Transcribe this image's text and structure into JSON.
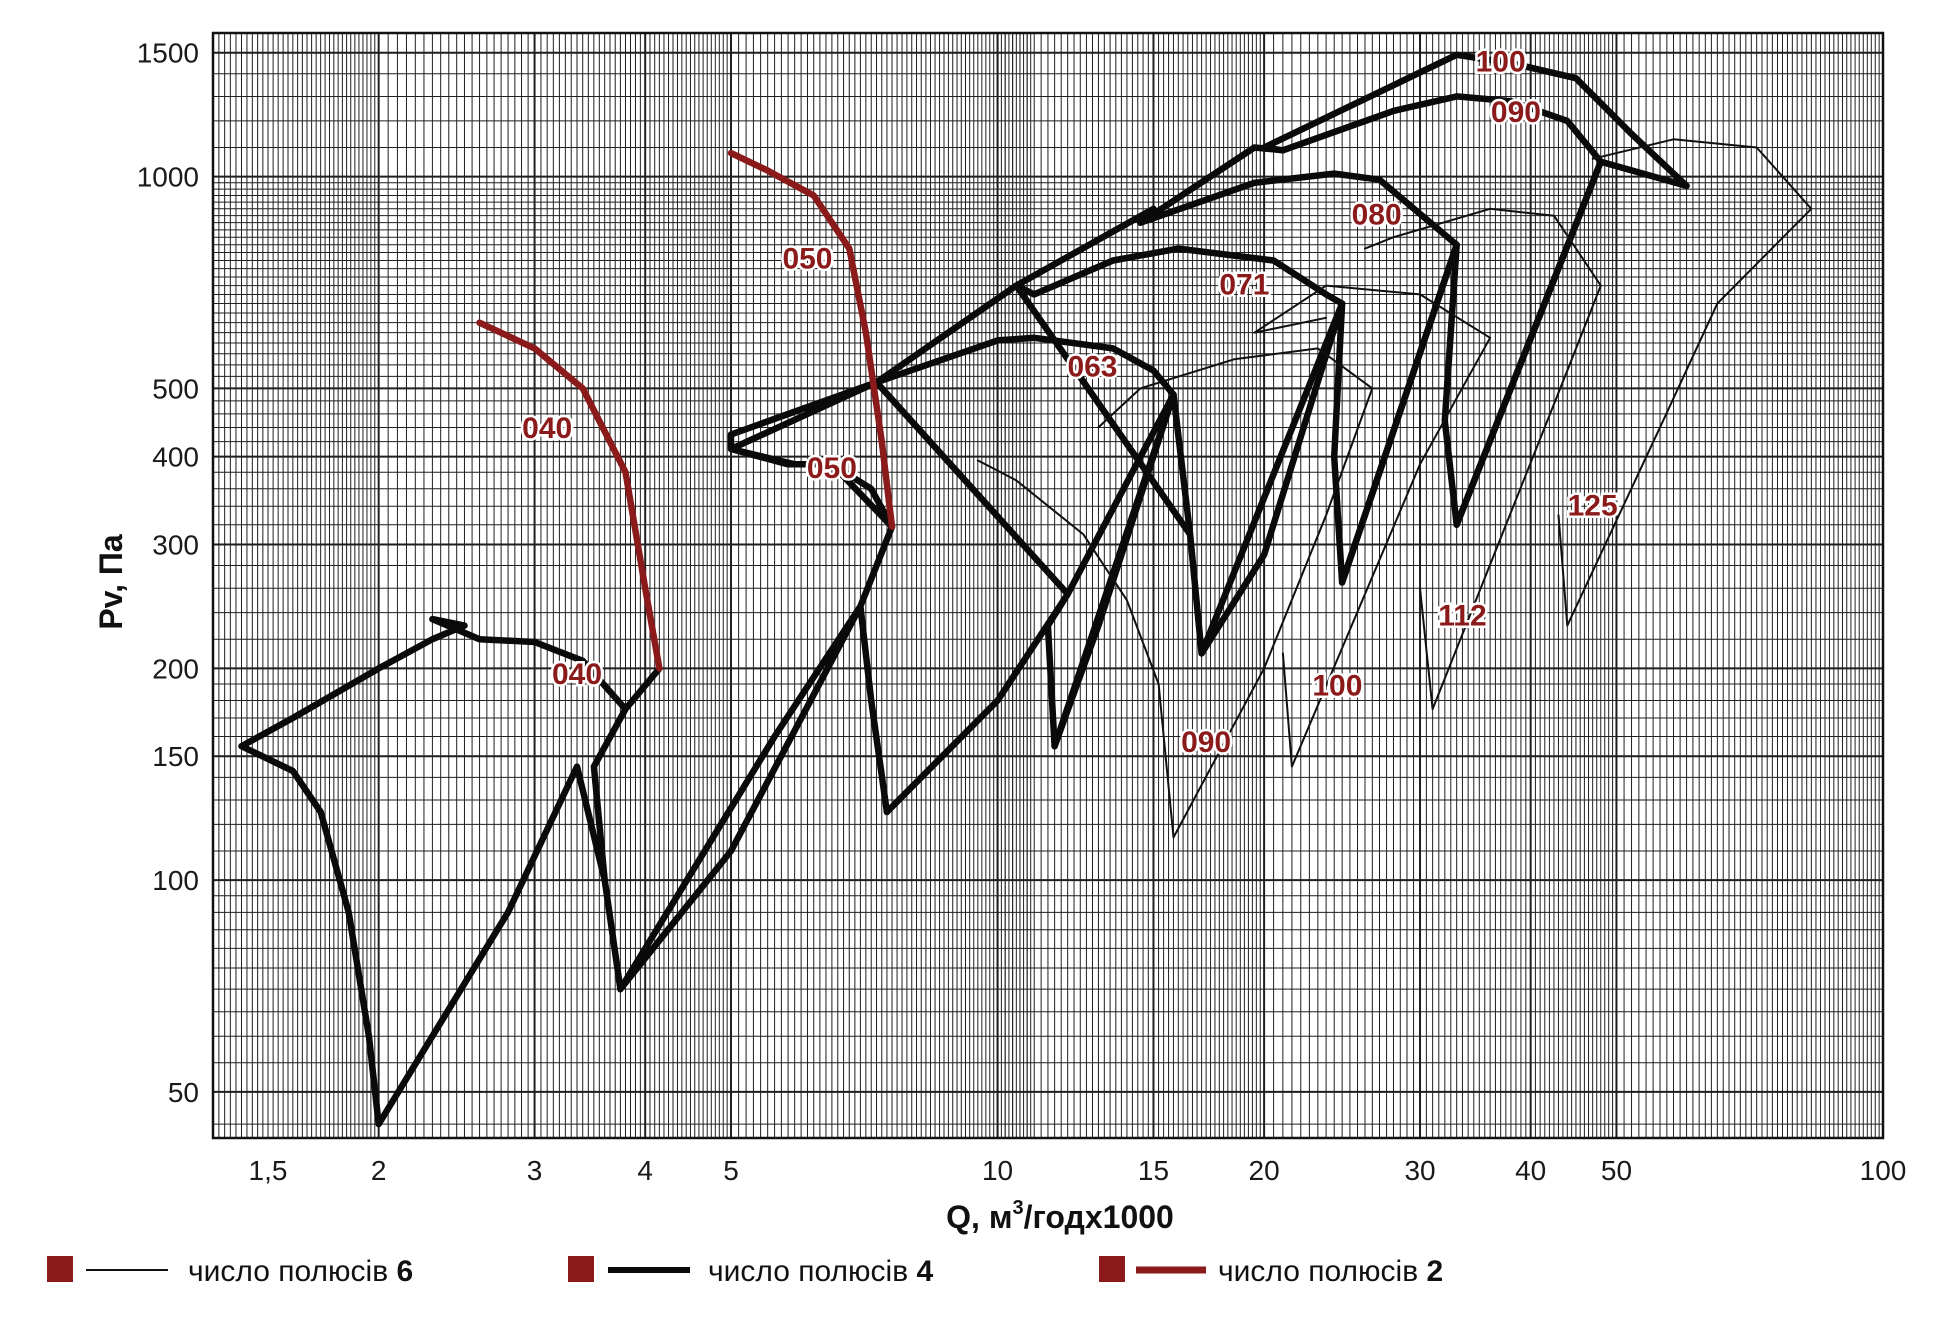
{
  "chart_data": {
    "type": "line",
    "title": "",
    "xlabel": "Q, м³/годx1000",
    "xlabel_parts": {
      "main": "Q, м",
      "sup": "3",
      "rest": "/годx1000"
    },
    "ylabel": "Pv, Па",
    "x_scale": "log",
    "y_scale": "log",
    "xlim": [
      1.3,
      100
    ],
    "ylim": [
      43,
      1600
    ],
    "grid": true,
    "x_ticks": [
      {
        "value": 1.5,
        "label": "1,5"
      },
      {
        "value": 2,
        "label": "2"
      },
      {
        "value": 3,
        "label": "3"
      },
      {
        "value": 4,
        "label": "4"
      },
      {
        "value": 5,
        "label": "5"
      },
      {
        "value": 10,
        "label": "10"
      },
      {
        "value": 15,
        "label": "15"
      },
      {
        "value": 20,
        "label": "20"
      },
      {
        "value": 30,
        "label": "30"
      },
      {
        "value": 40,
        "label": "40"
      },
      {
        "value": 50,
        "label": "50"
      },
      {
        "value": 100,
        "label": "100"
      }
    ],
    "y_ticks": [
      {
        "value": 50,
        "label": "50"
      },
      {
        "value": 100,
        "label": "100"
      },
      {
        "value": 150,
        "label": "150"
      },
      {
        "value": 200,
        "label": "200"
      },
      {
        "value": 300,
        "label": "300"
      },
      {
        "value": 400,
        "label": "400"
      },
      {
        "value": 500,
        "label": "500"
      },
      {
        "value": 1000,
        "label": "1000"
      },
      {
        "value": 1500,
        "label": "1500"
      }
    ],
    "series": [
      {
        "label": "040",
        "poles": 4,
        "label_at": [
          3.35,
          190
        ],
        "points": [
          [
            2.0,
            45
          ],
          [
            1.95,
            60
          ],
          [
            1.85,
            90
          ],
          [
            1.72,
            125
          ],
          [
            1.6,
            143
          ],
          [
            1.4,
            155
          ],
          [
            1.6,
            170
          ],
          [
            2.0,
            200
          ],
          [
            2.3,
            220
          ],
          [
            2.5,
            230
          ],
          [
            2.3,
            235
          ],
          [
            2.6,
            220
          ],
          [
            3.0,
            218
          ],
          [
            3.4,
            205
          ],
          [
            3.8,
            175
          ],
          [
            4.15,
            200
          ],
          [
            3.8,
            175
          ],
          [
            3.5,
            145
          ],
          [
            3.6,
            100
          ],
          [
            3.75,
            70
          ],
          [
            3.6,
            100
          ],
          [
            3.35,
            145
          ],
          [
            2.8,
            90
          ],
          [
            2.0,
            45
          ]
        ]
      },
      {
        "label": "050",
        "poles": 4,
        "label_at": [
          6.5,
          373
        ],
        "points": [
          [
            3.75,
            70
          ],
          [
            5.0,
            110
          ],
          [
            7.0,
            245
          ],
          [
            7.6,
            318
          ],
          [
            7.0,
            245
          ],
          [
            7.2,
            180
          ],
          [
            7.5,
            125
          ],
          [
            7.2,
            180
          ],
          [
            7.0,
            245
          ],
          [
            5.6,
            160
          ],
          [
            3.75,
            70
          ]
        ]
      },
      {
        "label": "063",
        "poles": 4,
        "label_at": [
          12.8,
          520
        ],
        "points": [
          [
            7.5,
            125
          ],
          [
            10.0,
            180
          ],
          [
            12.0,
            255
          ],
          [
            15.8,
            490
          ],
          [
            15.0,
            530
          ],
          [
            13.5,
            570
          ],
          [
            11.0,
            590
          ],
          [
            10.0,
            585
          ],
          [
            8.5,
            545
          ],
          [
            7.3,
            510
          ],
          [
            5.0,
            410
          ],
          [
            5.9,
            390
          ],
          [
            6.5,
            390
          ],
          [
            7.2,
            360
          ],
          [
            7.6,
            318
          ],
          [
            6.5,
            390
          ],
          [
            5.8,
            390
          ],
          [
            5.0,
            410
          ],
          [
            5.0,
            430
          ],
          [
            7.3,
            510
          ],
          [
            12.0,
            255
          ],
          [
            11.4,
            230
          ],
          [
            11.6,
            155
          ],
          [
            13.0,
            230
          ],
          [
            15.8,
            490
          ]
        ]
      },
      {
        "label": "071",
        "poles": 4,
        "label_at": [
          19.0,
          680
        ],
        "points": [
          [
            11.6,
            155
          ],
          [
            15.8,
            490
          ],
          [
            16.5,
            310
          ],
          [
            17.0,
            210
          ],
          [
            20.0,
            290
          ],
          [
            24.5,
            660
          ],
          [
            23.5,
            680
          ],
          [
            20.5,
            760
          ],
          [
            16.0,
            790
          ],
          [
            13.5,
            760
          ],
          [
            11.0,
            680
          ],
          [
            10.5,
            700
          ],
          [
            7.3,
            510
          ],
          [
            10.5,
            700
          ],
          [
            16.5,
            310
          ]
        ]
      },
      {
        "label": "080",
        "poles": 4,
        "label_at": [
          26.8,
          855
        ],
        "points": [
          [
            17.0,
            210
          ],
          [
            24.5,
            660
          ],
          [
            24.0,
            400
          ],
          [
            24.5,
            265
          ],
          [
            33.0,
            800
          ],
          [
            27.0,
            990
          ],
          [
            24.0,
            1010
          ],
          [
            19.5,
            980
          ],
          [
            14.5,
            860
          ],
          [
            15.0,
            900
          ],
          [
            10.5,
            700
          ]
        ]
      },
      {
        "label": "090",
        "poles": 4,
        "label_at": [
          38.5,
          1195
        ],
        "points": [
          [
            24.5,
            265
          ],
          [
            33.0,
            800
          ],
          [
            32.0,
            450
          ],
          [
            33.0,
            320
          ],
          [
            48.0,
            1050
          ],
          [
            44.0,
            1200
          ],
          [
            38.0,
            1280
          ],
          [
            33.0,
            1300
          ],
          [
            28.0,
            1240
          ],
          [
            21.0,
            1090
          ],
          [
            19.5,
            1100
          ],
          [
            14.5,
            860
          ]
        ]
      },
      {
        "label": "100",
        "poles": 4,
        "label_at": [
          37.0,
          1410
        ],
        "points": [
          [
            33.0,
            320
          ],
          [
            48.0,
            1050
          ],
          [
            60.0,
            970
          ],
          [
            52.0,
            1150
          ],
          [
            45.0,
            1380
          ],
          [
            38.0,
            1450
          ],
          [
            33.0,
            1490
          ],
          [
            20.0,
            1100
          ],
          [
            21.0,
            1090
          ]
        ]
      },
      {
        "label": "090",
        "poles": 6,
        "label_at": [
          17.2,
          152
        ],
        "points": [
          [
            9.5,
            395
          ],
          [
            10.5,
            370
          ],
          [
            12.5,
            310
          ],
          [
            14.0,
            250
          ],
          [
            15.2,
            190
          ],
          [
            15.8,
            115
          ],
          [
            20.0,
            200
          ],
          [
            23.5,
            330
          ],
          [
            26.5,
            500
          ],
          [
            23.0,
            570
          ],
          [
            18.5,
            550
          ],
          [
            14.5,
            500
          ],
          [
            13.0,
            440
          ]
        ]
      },
      {
        "label": "100",
        "poles": 6,
        "label_at": [
          24.2,
          183
        ],
        "points": [
          [
            21.0,
            210
          ],
          [
            21.5,
            145
          ],
          [
            30.0,
            390
          ],
          [
            36.0,
            590
          ],
          [
            30.0,
            680
          ],
          [
            23.5,
            700
          ],
          [
            19.5,
            600
          ],
          [
            23.5,
            630
          ],
          [
            19.5,
            600
          ]
        ]
      },
      {
        "label": "112",
        "poles": 6,
        "label_at": [
          33.5,
          230
        ],
        "points": [
          [
            30.0,
            260
          ],
          [
            31.0,
            175
          ],
          [
            44.0,
            530
          ],
          [
            48.0,
            700
          ],
          [
            42.5,
            880
          ],
          [
            36.0,
            900
          ],
          [
            28.0,
            820
          ],
          [
            26.0,
            790
          ],
          [
            28.0,
            820
          ]
        ]
      },
      {
        "label": "125",
        "poles": 6,
        "label_at": [
          47.0,
          330
        ],
        "points": [
          [
            43.0,
            330
          ],
          [
            44.0,
            230
          ],
          [
            56.0,
            440
          ],
          [
            65.0,
            660
          ],
          [
            83.0,
            900
          ],
          [
            72.0,
            1100
          ],
          [
            58.0,
            1130
          ],
          [
            47.0,
            1060
          ]
        ]
      },
      {
        "label": "040",
        "poles": 2,
        "label_at": [
          3.1,
          425
        ],
        "points": [
          [
            2.6,
            620
          ],
          [
            3.0,
            570
          ],
          [
            3.4,
            500
          ],
          [
            3.8,
            380
          ],
          [
            4.0,
            260
          ],
          [
            4.15,
            200
          ]
        ]
      },
      {
        "label": "050",
        "poles": 2,
        "label_at": [
          6.1,
          740
        ],
        "points": [
          [
            5.0,
            1080
          ],
          [
            5.5,
            1020
          ],
          [
            6.2,
            940
          ],
          [
            6.8,
            790
          ],
          [
            7.1,
            600
          ],
          [
            7.4,
            420
          ],
          [
            7.6,
            318
          ]
        ]
      }
    ],
    "legend": {
      "placement": "bottom",
      "entries": [
        {
          "text": "число полюсів",
          "number": "6",
          "poles": 6
        },
        {
          "text": "число полюсів",
          "number": "4",
          "poles": 4
        },
        {
          "text": "число полюсів",
          "number": "2",
          "poles": 2
        }
      ]
    },
    "colors": {
      "marker": "#8b1a1a",
      "poles_6": "#111111",
      "poles_4": "#0a0a0a",
      "poles_2": "#8b1a1a",
      "label": "#8b1a1a",
      "grid": "#1f1f1f"
    }
  }
}
